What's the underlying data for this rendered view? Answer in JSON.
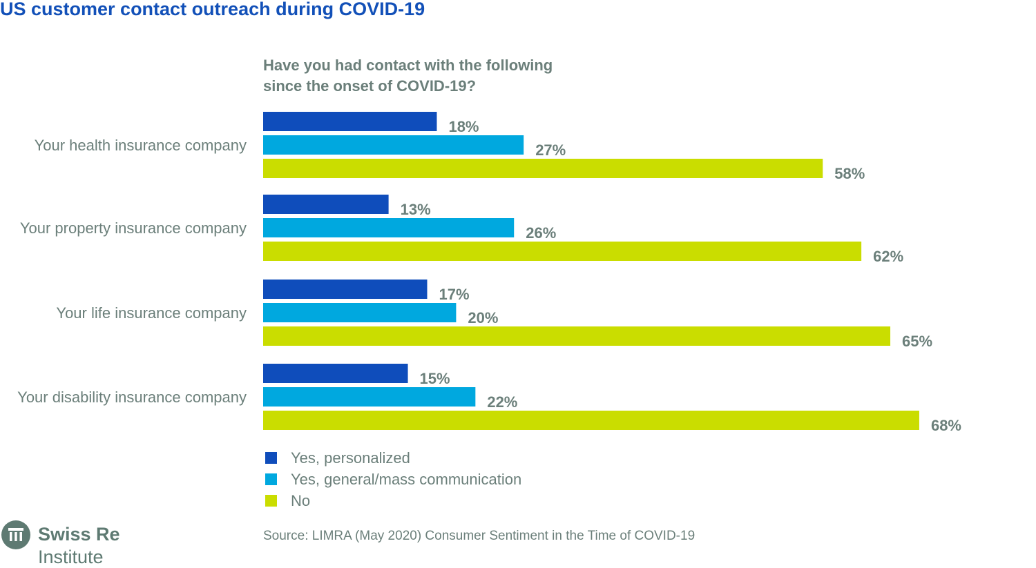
{
  "title": "US customer contact outreach during COVID-19",
  "chart_data": {
    "type": "bar",
    "orientation": "horizontal",
    "title": "Have you had contact with the following since the onset of COVID-19?",
    "title_lines": [
      "Have you had contact with the following",
      "since the onset of COVID-19?"
    ],
    "categories": [
      "Your health insurance company",
      "Your property insurance company",
      "Your life insurance company",
      "Your disability insurance company"
    ],
    "series": [
      {
        "name": "Yes, personalized",
        "color": "#0f4dbb",
        "values": [
          18,
          13,
          17,
          15
        ]
      },
      {
        "name": "Yes, general/mass communication",
        "color": "#00a8df",
        "values": [
          27,
          26,
          20,
          22
        ]
      },
      {
        "name": "No",
        "color": "#cadd00",
        "values": [
          58,
          62,
          65,
          68
        ]
      }
    ],
    "unit": "%",
    "xlim": [
      0,
      100
    ],
    "grid": false,
    "legend_placement": "bottom-left"
  },
  "source": "Source: LIMRA (May 2020) Consumer Sentiment in the Time of COVID-19",
  "logo": {
    "line1": "Swiss Re",
    "line2": "Institute"
  }
}
